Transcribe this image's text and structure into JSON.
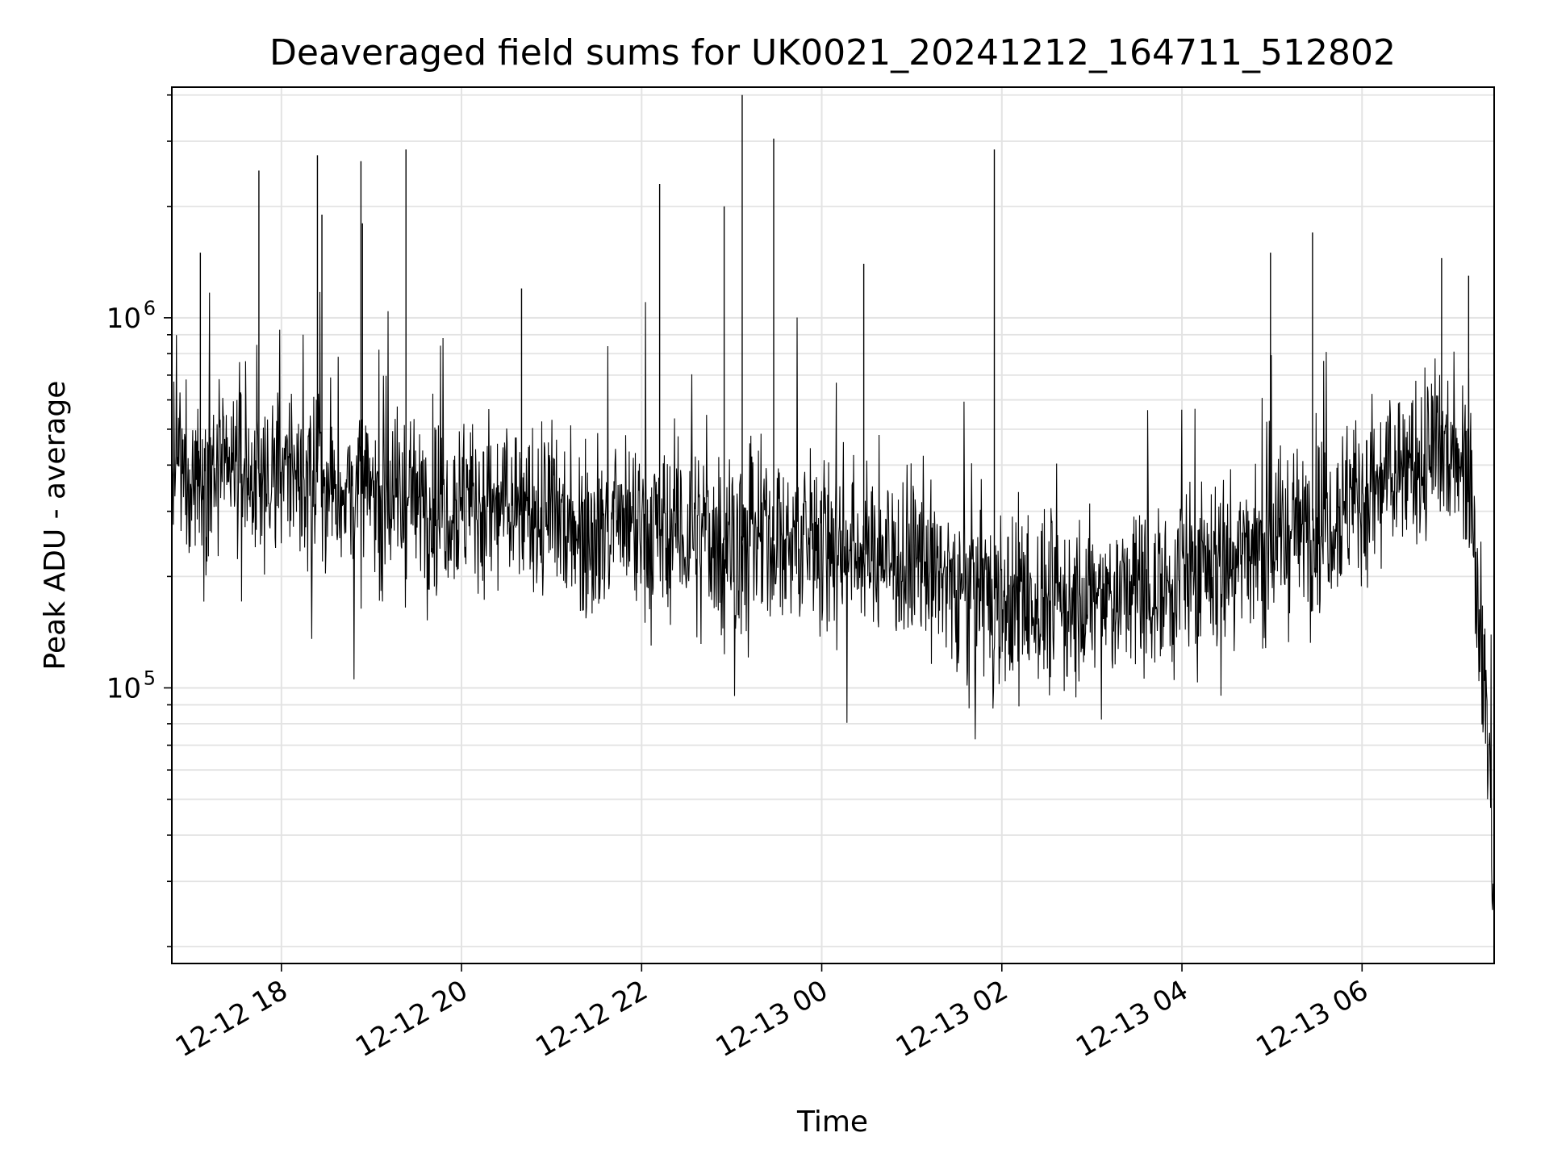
{
  "chart_data": {
    "type": "line",
    "title": "Deaveraged field sums for UK0021_20241212_164711_512802",
    "xlabel": "Time",
    "ylabel": "Peak ADU - average",
    "y_scale": "log",
    "ylim": [
      18000,
      4200000
    ],
    "xlim": [
      "2024-12-12T16:47",
      "2024-12-13T07:28"
    ],
    "grid": true,
    "line_color": "#000000",
    "x_ticks": [
      {
        "value": "2024-12-12T18:00",
        "label": "12-12 18"
      },
      {
        "value": "2024-12-12T20:00",
        "label": "12-12 20"
      },
      {
        "value": "2024-12-12T22:00",
        "label": "12-12 22"
      },
      {
        "value": "2024-12-13T00:00",
        "label": "12-13 00"
      },
      {
        "value": "2024-12-13T02:00",
        "label": "12-13 02"
      },
      {
        "value": "2024-12-13T04:00",
        "label": "12-13 04"
      },
      {
        "value": "2024-12-13T06:00",
        "label": "12-13 06"
      }
    ],
    "y_ticks": [
      {
        "value": 100000,
        "base": "10",
        "exp": "5"
      },
      {
        "value": 1000000,
        "base": "10",
        "exp": "6"
      }
    ],
    "baseline_trend": [
      {
        "x": "2024-12-12T16:47",
        "y": 380000
      },
      {
        "x": "2024-12-12T18:00",
        "y": 380000
      },
      {
        "x": "2024-12-12T19:00",
        "y": 330000
      },
      {
        "x": "2024-12-12T20:00",
        "y": 320000
      },
      {
        "x": "2024-12-12T21:00",
        "y": 290000
      },
      {
        "x": "2024-12-12T22:00",
        "y": 260000
      },
      {
        "x": "2024-12-12T23:00",
        "y": 250000
      },
      {
        "x": "2024-12-13T00:00",
        "y": 250000
      },
      {
        "x": "2024-12-13T01:00",
        "y": 220000
      },
      {
        "x": "2024-12-13T02:00",
        "y": 170000
      },
      {
        "x": "2024-12-13T03:00",
        "y": 170000
      },
      {
        "x": "2024-12-13T04:00",
        "y": 200000
      },
      {
        "x": "2024-12-13T05:00",
        "y": 250000
      },
      {
        "x": "2024-12-13T06:00",
        "y": 330000
      },
      {
        "x": "2024-12-13T07:00",
        "y": 450000
      },
      {
        "x": "2024-12-13T07:12",
        "y": 430000
      },
      {
        "x": "2024-12-13T07:18",
        "y": 160000
      },
      {
        "x": "2024-12-13T07:23",
        "y": 90000
      },
      {
        "x": "2024-12-13T07:28",
        "y": 28000
      }
    ],
    "peaks": [
      {
        "x": "2024-12-12T17:06",
        "y": 1500000
      },
      {
        "x": "2024-12-12T17:45",
        "y": 2500000
      },
      {
        "x": "2024-12-12T18:24",
        "y": 2750000
      },
      {
        "x": "2024-12-12T18:27",
        "y": 1900000
      },
      {
        "x": "2024-12-12T18:53",
        "y": 2650000
      },
      {
        "x": "2024-12-12T18:54",
        "y": 1800000
      },
      {
        "x": "2024-12-12T19:23",
        "y": 2850000
      },
      {
        "x": "2024-12-12T20:40",
        "y": 1200000
      },
      {
        "x": "2024-12-12T22:12",
        "y": 2300000
      },
      {
        "x": "2024-12-12T22:55",
        "y": 2000000
      },
      {
        "x": "2024-12-12T23:07",
        "y": 4000000
      },
      {
        "x": "2024-12-12T23:28",
        "y": 3050000
      },
      {
        "x": "2024-12-13T00:28",
        "y": 1400000
      },
      {
        "x": "2024-12-13T01:55",
        "y": 2850000
      },
      {
        "x": "2024-12-13T04:59",
        "y": 1500000
      },
      {
        "x": "2024-12-13T05:27",
        "y": 1700000
      },
      {
        "x": "2024-12-13T06:53",
        "y": 1450000
      },
      {
        "x": "2024-12-13T07:11",
        "y": 1300000
      }
    ]
  }
}
